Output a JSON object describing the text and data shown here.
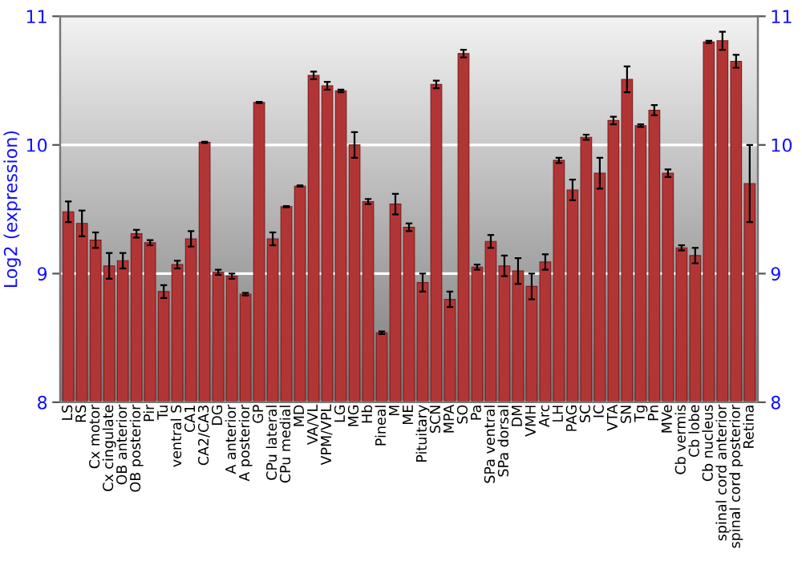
{
  "chart_data": {
    "type": "bar",
    "ylabel": "Log2 (expression)",
    "categories": [
      "LS",
      "RS",
      "Cx motor",
      "Cx cingulate",
      "OB anterior",
      "OB posterior",
      "Pir",
      "Tu",
      "ventral S",
      "CA1",
      "CA2/CA3",
      "DG",
      "A anterior",
      "A posterior",
      "GP",
      "CPu lateral",
      "CPu medial",
      "MD",
      "VA/VL",
      "VPM/VPL",
      "LG",
      "MG",
      "Hb",
      "Pineal",
      "M",
      "ME",
      "Pituitary",
      "SCN",
      "MPA",
      "SO",
      "Pa",
      "SPa ventral",
      "SPa dorsal",
      "DM",
      "VMH",
      "Arc",
      "LH",
      "PAG",
      "SC",
      "IC",
      "VTA",
      "SN",
      "Tg",
      "Pn",
      "MVe",
      "Cb vermis",
      "Cb lobe",
      "Cb nucleus",
      "spinal cord anterior",
      "spinal cord posterior",
      "Retina"
    ],
    "values": [
      9.48,
      9.39,
      9.26,
      9.06,
      9.1,
      9.31,
      9.24,
      8.86,
      9.07,
      9.27,
      10.02,
      9.01,
      8.98,
      8.84,
      10.33,
      9.27,
      9.52,
      9.68,
      10.54,
      10.46,
      10.42,
      10.0,
      9.56,
      8.54,
      9.54,
      9.36,
      8.93,
      10.47,
      8.8,
      10.71,
      9.05,
      9.25,
      9.06,
      9.02,
      8.9,
      9.09,
      9.88,
      9.65,
      10.06,
      9.78,
      10.19,
      10.51,
      10.15,
      10.27,
      9.78,
      9.2,
      9.14,
      10.8,
      10.81,
      10.65,
      9.7
    ],
    "errors": [
      0.08,
      0.1,
      0.06,
      0.1,
      0.06,
      0.03,
      0.02,
      0.05,
      0.03,
      0.06,
      0.005,
      0.02,
      0.02,
      0.01,
      0.005,
      0.05,
      0.005,
      0.005,
      0.03,
      0.03,
      0.01,
      0.1,
      0.02,
      0.01,
      0.08,
      0.03,
      0.07,
      0.03,
      0.06,
      0.03,
      0.02,
      0.05,
      0.08,
      0.1,
      0.1,
      0.06,
      0.02,
      0.08,
      0.02,
      0.12,
      0.03,
      0.1,
      0.01,
      0.04,
      0.03,
      0.02,
      0.06,
      0.01,
      0.07,
      0.05,
      0.3
    ],
    "color": "#b23535",
    "ylim": [
      8,
      11
    ],
    "yticks": [
      8,
      9,
      10,
      11
    ],
    "y2lim": [
      8,
      11
    ],
    "y2ticks": [
      8,
      9,
      10,
      11
    ],
    "grid": "y",
    "legend": false
  }
}
